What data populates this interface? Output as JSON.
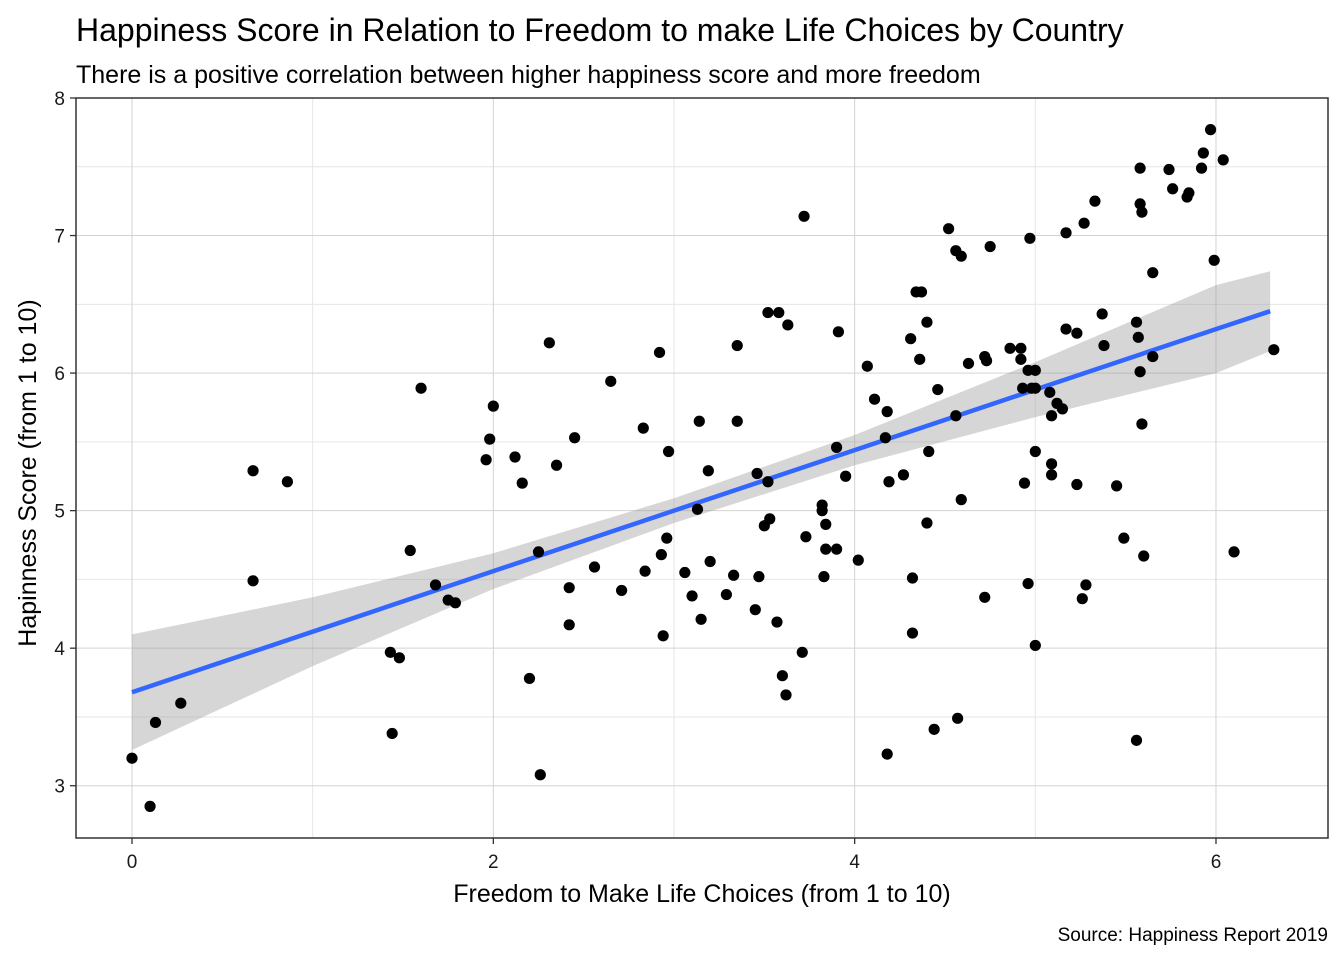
{
  "chart_data": {
    "type": "scatter",
    "title": "Happiness Score in Relation to Freedom to make Life Choices by Country",
    "subtitle": "There is a positive correlation between higher happiness score and more freedom",
    "xlabel": "Freedom to Make Life Choices (from 1 to 10)",
    "ylabel": "Hapinness Score (from 1 to 10)",
    "caption": "Source: Happiness Report 2019",
    "xlim": [
      -0.31,
      6.62
    ],
    "ylim": [
      2.62,
      8.0
    ],
    "x_ticks": [
      "0",
      "2",
      "4",
      "6"
    ],
    "y_ticks": [
      "3",
      "4",
      "5",
      "6",
      "7",
      "8"
    ],
    "grid": true,
    "legend": "none",
    "colors": {
      "points": "#000000",
      "trend_line": "#3366FF",
      "ribbon": "#999999"
    },
    "trend": {
      "method": "linear regression with confidence band",
      "x": [
        0,
        1,
        2,
        3,
        4,
        5,
        6,
        6.3
      ],
      "y": [
        3.68,
        4.12,
        4.56,
        5.0,
        5.44,
        5.88,
        6.32,
        6.45
      ],
      "ci_lower": [
        3.26,
        3.87,
        4.43,
        4.91,
        5.33,
        5.68,
        6.0,
        6.16
      ],
      "ci_upper": [
        4.1,
        4.37,
        4.69,
        5.09,
        5.55,
        6.08,
        6.64,
        6.74
      ]
    },
    "points": [
      {
        "x": 0.0,
        "y": 3.2
      },
      {
        "x": 0.1,
        "y": 2.85
      },
      {
        "x": 0.13,
        "y": 3.46
      },
      {
        "x": 0.27,
        "y": 3.6
      },
      {
        "x": 0.67,
        "y": 5.29
      },
      {
        "x": 0.67,
        "y": 4.49
      },
      {
        "x": 0.86,
        "y": 5.21
      },
      {
        "x": 1.43,
        "y": 3.97
      },
      {
        "x": 1.44,
        "y": 3.38
      },
      {
        "x": 1.48,
        "y": 3.93
      },
      {
        "x": 1.54,
        "y": 4.71
      },
      {
        "x": 1.6,
        "y": 5.89
      },
      {
        "x": 1.68,
        "y": 4.46
      },
      {
        "x": 1.75,
        "y": 4.35
      },
      {
        "x": 1.79,
        "y": 4.33
      },
      {
        "x": 1.96,
        "y": 5.37
      },
      {
        "x": 1.98,
        "y": 5.52
      },
      {
        "x": 2.0,
        "y": 5.76
      },
      {
        "x": 2.12,
        "y": 5.39
      },
      {
        "x": 2.16,
        "y": 5.2
      },
      {
        "x": 2.2,
        "y": 3.78
      },
      {
        "x": 2.25,
        "y": 4.7
      },
      {
        "x": 2.26,
        "y": 3.08
      },
      {
        "x": 2.31,
        "y": 6.22
      },
      {
        "x": 2.35,
        "y": 5.33
      },
      {
        "x": 2.42,
        "y": 4.44
      },
      {
        "x": 2.42,
        "y": 4.17
      },
      {
        "x": 2.45,
        "y": 5.53
      },
      {
        "x": 2.56,
        "y": 4.59
      },
      {
        "x": 2.65,
        "y": 5.94
      },
      {
        "x": 2.71,
        "y": 4.42
      },
      {
        "x": 2.83,
        "y": 5.6
      },
      {
        "x": 2.84,
        "y": 4.56
      },
      {
        "x": 2.92,
        "y": 6.15
      },
      {
        "x": 2.93,
        "y": 4.68
      },
      {
        "x": 2.94,
        "y": 4.09
      },
      {
        "x": 2.96,
        "y": 4.8
      },
      {
        "x": 2.97,
        "y": 5.43
      },
      {
        "x": 3.06,
        "y": 4.55
      },
      {
        "x": 3.1,
        "y": 4.38
      },
      {
        "x": 3.13,
        "y": 5.01
      },
      {
        "x": 3.14,
        "y": 5.65
      },
      {
        "x": 3.15,
        "y": 4.21
      },
      {
        "x": 3.19,
        "y": 5.29
      },
      {
        "x": 3.2,
        "y": 4.63
      },
      {
        "x": 3.29,
        "y": 4.39
      },
      {
        "x": 3.33,
        "y": 4.53
      },
      {
        "x": 3.35,
        "y": 6.2
      },
      {
        "x": 3.35,
        "y": 5.65
      },
      {
        "x": 3.45,
        "y": 4.28
      },
      {
        "x": 3.46,
        "y": 5.27
      },
      {
        "x": 3.47,
        "y": 4.52
      },
      {
        "x": 3.5,
        "y": 4.89
      },
      {
        "x": 3.52,
        "y": 6.44
      },
      {
        "x": 3.52,
        "y": 5.21
      },
      {
        "x": 3.53,
        "y": 4.94
      },
      {
        "x": 3.57,
        "y": 4.19
      },
      {
        "x": 3.58,
        "y": 6.44
      },
      {
        "x": 3.6,
        "y": 3.8
      },
      {
        "x": 3.62,
        "y": 3.66
      },
      {
        "x": 3.63,
        "y": 6.35
      },
      {
        "x": 3.71,
        "y": 3.97
      },
      {
        "x": 3.72,
        "y": 7.14
      },
      {
        "x": 3.73,
        "y": 4.81
      },
      {
        "x": 3.82,
        "y": 5.04
      },
      {
        "x": 3.82,
        "y": 5.0
      },
      {
        "x": 3.83,
        "y": 4.52
      },
      {
        "x": 3.84,
        "y": 4.9
      },
      {
        "x": 3.84,
        "y": 4.72
      },
      {
        "x": 3.9,
        "y": 5.46
      },
      {
        "x": 3.9,
        "y": 4.72
      },
      {
        "x": 3.91,
        "y": 6.3
      },
      {
        "x": 3.95,
        "y": 5.25
      },
      {
        "x": 4.02,
        "y": 4.64
      },
      {
        "x": 4.07,
        "y": 6.05
      },
      {
        "x": 4.11,
        "y": 5.81
      },
      {
        "x": 4.17,
        "y": 5.53
      },
      {
        "x": 4.18,
        "y": 5.72
      },
      {
        "x": 4.18,
        "y": 3.23
      },
      {
        "x": 4.19,
        "y": 5.21
      },
      {
        "x": 4.27,
        "y": 5.26
      },
      {
        "x": 4.31,
        "y": 6.25
      },
      {
        "x": 4.32,
        "y": 4.51
      },
      {
        "x": 4.32,
        "y": 4.11
      },
      {
        "x": 4.34,
        "y": 6.59
      },
      {
        "x": 4.36,
        "y": 6.1
      },
      {
        "x": 4.37,
        "y": 6.59
      },
      {
        "x": 4.4,
        "y": 6.37
      },
      {
        "x": 4.4,
        "y": 4.91
      },
      {
        "x": 4.41,
        "y": 5.43
      },
      {
        "x": 4.44,
        "y": 3.41
      },
      {
        "x": 4.46,
        "y": 5.88
      },
      {
        "x": 4.52,
        "y": 7.05
      },
      {
        "x": 4.56,
        "y": 6.89
      },
      {
        "x": 4.56,
        "y": 5.69
      },
      {
        "x": 4.57,
        "y": 3.49
      },
      {
        "x": 4.59,
        "y": 6.85
      },
      {
        "x": 4.59,
        "y": 5.08
      },
      {
        "x": 4.63,
        "y": 6.07
      },
      {
        "x": 4.72,
        "y": 6.12
      },
      {
        "x": 4.72,
        "y": 4.37
      },
      {
        "x": 4.73,
        "y": 6.09
      },
      {
        "x": 4.75,
        "y": 6.92
      },
      {
        "x": 4.86,
        "y": 6.18
      },
      {
        "x": 4.92,
        "y": 6.18
      },
      {
        "x": 4.92,
        "y": 6.1
      },
      {
        "x": 4.93,
        "y": 5.89
      },
      {
        "x": 4.94,
        "y": 5.2
      },
      {
        "x": 4.96,
        "y": 6.02
      },
      {
        "x": 4.96,
        "y": 4.47
      },
      {
        "x": 4.97,
        "y": 6.98
      },
      {
        "x": 4.98,
        "y": 5.89
      },
      {
        "x": 5.0,
        "y": 5.43
      },
      {
        "x": 5.0,
        "y": 5.89
      },
      {
        "x": 5.0,
        "y": 6.02
      },
      {
        "x": 5.0,
        "y": 4.02
      },
      {
        "x": 5.08,
        "y": 5.86
      },
      {
        "x": 5.09,
        "y": 5.69
      },
      {
        "x": 5.09,
        "y": 5.34
      },
      {
        "x": 5.09,
        "y": 5.26
      },
      {
        "x": 5.12,
        "y": 5.78
      },
      {
        "x": 5.15,
        "y": 5.74
      },
      {
        "x": 5.17,
        "y": 7.02
      },
      {
        "x": 5.17,
        "y": 6.32
      },
      {
        "x": 5.23,
        "y": 6.29
      },
      {
        "x": 5.23,
        "y": 5.19
      },
      {
        "x": 5.26,
        "y": 4.36
      },
      {
        "x": 5.27,
        "y": 7.09
      },
      {
        "x": 5.28,
        "y": 4.46
      },
      {
        "x": 5.33,
        "y": 7.25
      },
      {
        "x": 5.37,
        "y": 6.43
      },
      {
        "x": 5.38,
        "y": 6.2
      },
      {
        "x": 5.45,
        "y": 5.18
      },
      {
        "x": 5.49,
        "y": 4.8
      },
      {
        "x": 5.56,
        "y": 6.37
      },
      {
        "x": 5.56,
        "y": 3.33
      },
      {
        "x": 5.57,
        "y": 6.26
      },
      {
        "x": 5.58,
        "y": 7.49
      },
      {
        "x": 5.58,
        "y": 7.23
      },
      {
        "x": 5.58,
        "y": 6.01
      },
      {
        "x": 5.59,
        "y": 7.17
      },
      {
        "x": 5.59,
        "y": 5.63
      },
      {
        "x": 5.6,
        "y": 4.67
      },
      {
        "x": 5.65,
        "y": 6.73
      },
      {
        "x": 5.65,
        "y": 6.12
      },
      {
        "x": 5.74,
        "y": 7.48
      },
      {
        "x": 5.76,
        "y": 7.34
      },
      {
        "x": 5.84,
        "y": 7.28
      },
      {
        "x": 5.85,
        "y": 7.31
      },
      {
        "x": 5.92,
        "y": 7.49
      },
      {
        "x": 5.93,
        "y": 7.6
      },
      {
        "x": 5.97,
        "y": 7.77
      },
      {
        "x": 5.99,
        "y": 6.82
      },
      {
        "x": 6.04,
        "y": 7.55
      },
      {
        "x": 6.1,
        "y": 4.7
      },
      {
        "x": 6.32,
        "y": 6.17
      }
    ]
  }
}
